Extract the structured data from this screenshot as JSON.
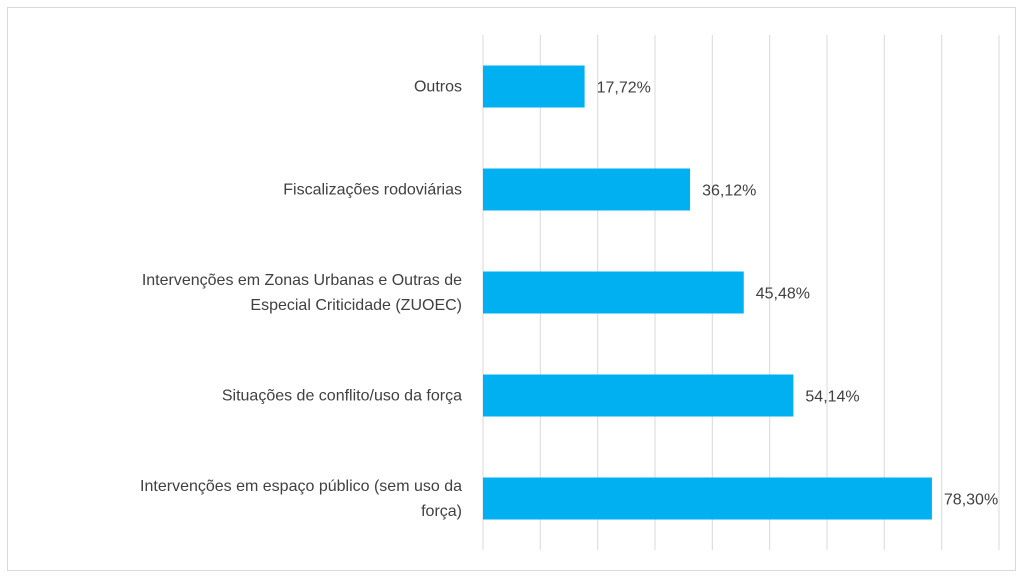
{
  "chart_data": {
    "type": "barh",
    "categories": [
      "Outros",
      "Fiscalizações rodoviárias",
      "Intervenções em Zonas Urbanas e Outras de\nEspecial Criticidade (ZUOEC)",
      "Situações de conflito/uso da força",
      "Intervenções em espaço público (sem uso da\nforça)"
    ],
    "values": [
      17.72,
      36.12,
      45.48,
      54.14,
      78.3
    ],
    "value_labels": [
      "17,72%",
      "36,12%",
      "45,48%",
      "54,14%",
      "78,30%"
    ],
    "color": "#00b0f0",
    "xlim": [
      0,
      90
    ],
    "xticks": [
      0,
      10,
      20,
      30,
      40,
      50,
      60,
      70,
      80,
      90
    ],
    "grid": true
  }
}
